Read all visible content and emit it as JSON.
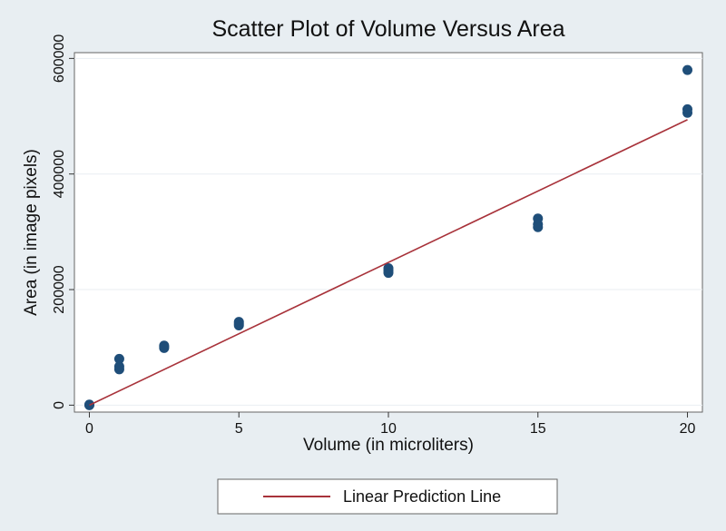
{
  "chart_data": {
    "type": "scatter",
    "title": "Scatter Plot of Volume Versus Area",
    "xlabel": "Volume (in microliters)",
    "ylabel": "Area (in image pixels)",
    "xlim": [
      -0.5,
      20.5
    ],
    "ylim": [
      -12000,
      610000
    ],
    "xticks": [
      0,
      5,
      10,
      15,
      20
    ],
    "xtick_labels": [
      "0",
      "5",
      "10",
      "15",
      "20"
    ],
    "yticks": [
      0,
      200000,
      400000,
      600000
    ],
    "ytick_labels": [
      "0",
      "200000",
      "400000",
      "600000"
    ],
    "grid": true,
    "legend_position": "bottom",
    "series": [
      {
        "kind": "scatter",
        "color": "#1f4e79",
        "points": [
          {
            "x": 0,
            "y": 0
          },
          {
            "x": 0,
            "y": 1000
          },
          {
            "x": 1,
            "y": 62000
          },
          {
            "x": 1,
            "y": 67000
          },
          {
            "x": 1,
            "y": 80000
          },
          {
            "x": 2.5,
            "y": 99000
          },
          {
            "x": 2.5,
            "y": 101000
          },
          {
            "x": 2.5,
            "y": 103000
          },
          {
            "x": 5,
            "y": 138000
          },
          {
            "x": 5,
            "y": 141000
          },
          {
            "x": 5,
            "y": 144000
          },
          {
            "x": 10,
            "y": 229000
          },
          {
            "x": 10,
            "y": 233000
          },
          {
            "x": 10,
            "y": 237000
          },
          {
            "x": 15,
            "y": 308000
          },
          {
            "x": 15,
            "y": 313000
          },
          {
            "x": 15,
            "y": 323000
          },
          {
            "x": 20,
            "y": 506000
          },
          {
            "x": 20,
            "y": 512000
          },
          {
            "x": 20,
            "y": 580000
          }
        ]
      },
      {
        "kind": "line",
        "name": "Linear Prediction Line",
        "color": "#a8323a",
        "points": [
          {
            "x": 0,
            "y": 0
          },
          {
            "x": 20,
            "y": 494000
          }
        ]
      }
    ]
  }
}
